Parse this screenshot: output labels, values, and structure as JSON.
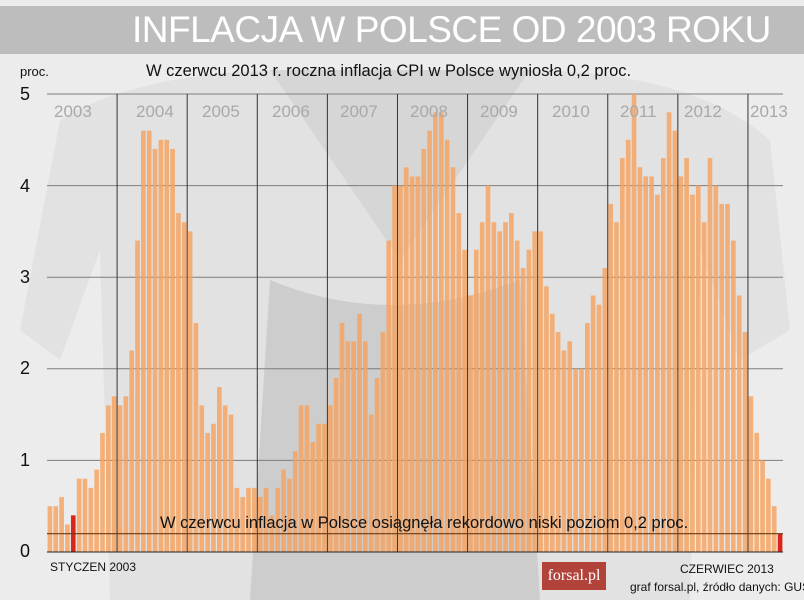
{
  "header": {
    "title": "INFLACJA W POLSCE OD 2003 ROKU"
  },
  "brand": {
    "logo_text": "forsal.pl",
    "source": "graf forsal.pl, źródło danych: GUS"
  },
  "colors": {
    "bar": "#f5a25e",
    "highlight": "#d9261c",
    "reference_line": "#6a3a14",
    "banner": "#bdbdbd"
  },
  "chart_data": {
    "type": "bar",
    "title": "W czerwcu 2013 r. roczna inflacja CPI w Polsce wyniosła 0,2 proc.",
    "ylabel": "proc.",
    "ylim": [
      0,
      5
    ],
    "yticks": [
      "0",
      "1",
      "2",
      "3",
      "4",
      "5"
    ],
    "grid": true,
    "years": [
      "2003",
      "2004",
      "2005",
      "2006",
      "2007",
      "2008",
      "2009",
      "2010",
      "2011",
      "2012",
      "2013"
    ],
    "start_label": "STYCZEN 2003",
    "end_label": "CZERWIEC 2013",
    "annotation": "W czerwcu inflacja w Polsce osiągnęła rekordowo niski poziom 0,2 proc.",
    "reference_value": 0.2,
    "highlight_indices": [
      4,
      125
    ],
    "values": [
      0.5,
      0.5,
      0.6,
      0.3,
      0.4,
      0.8,
      0.8,
      0.7,
      0.9,
      1.3,
      1.6,
      1.7,
      1.6,
      1.7,
      2.2,
      3.4,
      4.6,
      4.6,
      4.4,
      4.5,
      4.5,
      4.4,
      3.7,
      3.6,
      3.5,
      2.5,
      1.6,
      1.3,
      1.4,
      1.8,
      1.6,
      1.5,
      0.7,
      0.6,
      0.7,
      0.7,
      0.6,
      0.7,
      0.4,
      0.7,
      0.9,
      0.8,
      1.1,
      1.6,
      1.6,
      1.2,
      1.4,
      1.4,
      1.6,
      1.9,
      2.5,
      2.3,
      2.3,
      2.6,
      2.3,
      1.5,
      1.9,
      2.4,
      3.4,
      4.0,
      4.0,
      4.2,
      4.1,
      4.1,
      4.4,
      4.6,
      4.8,
      4.8,
      4.5,
      4.2,
      3.7,
      3.3,
      2.8,
      3.3,
      3.6,
      4.0,
      3.6,
      3.5,
      3.6,
      3.7,
      3.4,
      3.1,
      3.3,
      3.5,
      3.5,
      2.9,
      2.6,
      2.4,
      2.2,
      2.3,
      2.0,
      2.0,
      2.5,
      2.8,
      2.7,
      3.1,
      3.8,
      3.6,
      4.3,
      4.5,
      5.0,
      4.2,
      4.1,
      4.1,
      3.9,
      4.3,
      4.8,
      4.6,
      4.1,
      4.3,
      3.9,
      4.0,
      3.6,
      4.3,
      4.0,
      3.8,
      3.8,
      3.4,
      2.8,
      2.4,
      1.7,
      1.3,
      1.0,
      0.8,
      0.5,
      0.2
    ]
  }
}
